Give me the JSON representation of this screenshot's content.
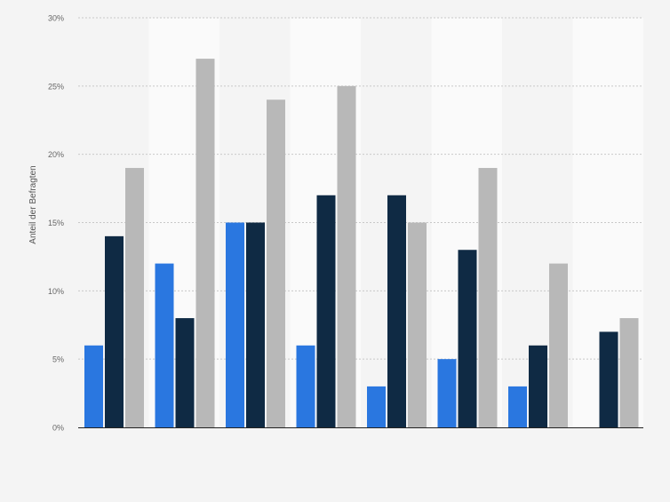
{
  "chart_data": {
    "type": "bar",
    "title": "",
    "xlabel": "",
    "ylabel": "Anteil der Befragten",
    "ylim": [
      0,
      30
    ],
    "yticks": [
      0,
      5,
      10,
      15,
      20,
      25,
      30
    ],
    "ytick_labels": [
      "0%",
      "5%",
      "10%",
      "15%",
      "20%",
      "25%",
      "30%"
    ],
    "grid": true,
    "legend": "none",
    "categories": [
      "",
      "",
      "",
      "",
      "",
      "",
      "",
      ""
    ],
    "series": [
      {
        "color": "#2a77e0",
        "values": [
          6,
          12,
          15,
          6,
          3,
          5,
          3,
          null
        ]
      },
      {
        "color": "#0f2a44",
        "values": [
          14,
          8,
          15,
          17,
          17,
          13,
          6,
          7
        ]
      },
      {
        "color": "#b8b8b8",
        "values": [
          19,
          27,
          24,
          25,
          15,
          19,
          12,
          8
        ]
      }
    ]
  }
}
